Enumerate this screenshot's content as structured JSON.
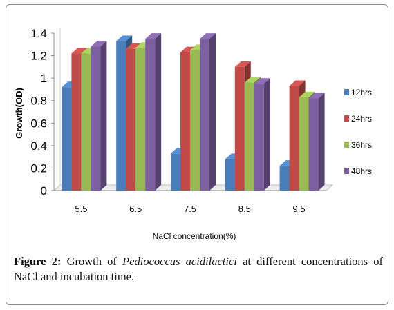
{
  "chart_data": {
    "type": "bar",
    "title": "",
    "xlabel": "NaCl concentration(%)",
    "ylabel": "Growth(OD)",
    "categories": [
      "5.5",
      "6.5",
      "7.5",
      "8.5",
      "9.5"
    ],
    "ylim": [
      0,
      1.4
    ],
    "yticks": [
      "0",
      "0.2",
      "0.4",
      "0.6",
      "0.8",
      "1",
      "1.2",
      "1.4"
    ],
    "grid": false,
    "legend_position": "right",
    "style": "3d-columns",
    "series": [
      {
        "name": "12hrs",
        "color": "#4a7ebb",
        "values": [
          0.92,
          1.33,
          0.33,
          0.28,
          0.22
        ]
      },
      {
        "name": "24hrs",
        "color": "#be4b48",
        "values": [
          1.22,
          1.26,
          1.23,
          1.1,
          0.93
        ]
      },
      {
        "name": "36hrs",
        "color": "#98b954",
        "values": [
          1.22,
          1.27,
          1.25,
          0.96,
          0.83
        ]
      },
      {
        "name": "48hrs",
        "color": "#7d60a0",
        "values": [
          1.28,
          1.35,
          1.35,
          0.95,
          0.82
        ]
      }
    ]
  },
  "caption": {
    "label": "Figure 2:",
    "text_before": "Growth of",
    "species": "Pediococcus acidilactici",
    "text_after": "at different concentrations of NaCl and incubation time."
  }
}
